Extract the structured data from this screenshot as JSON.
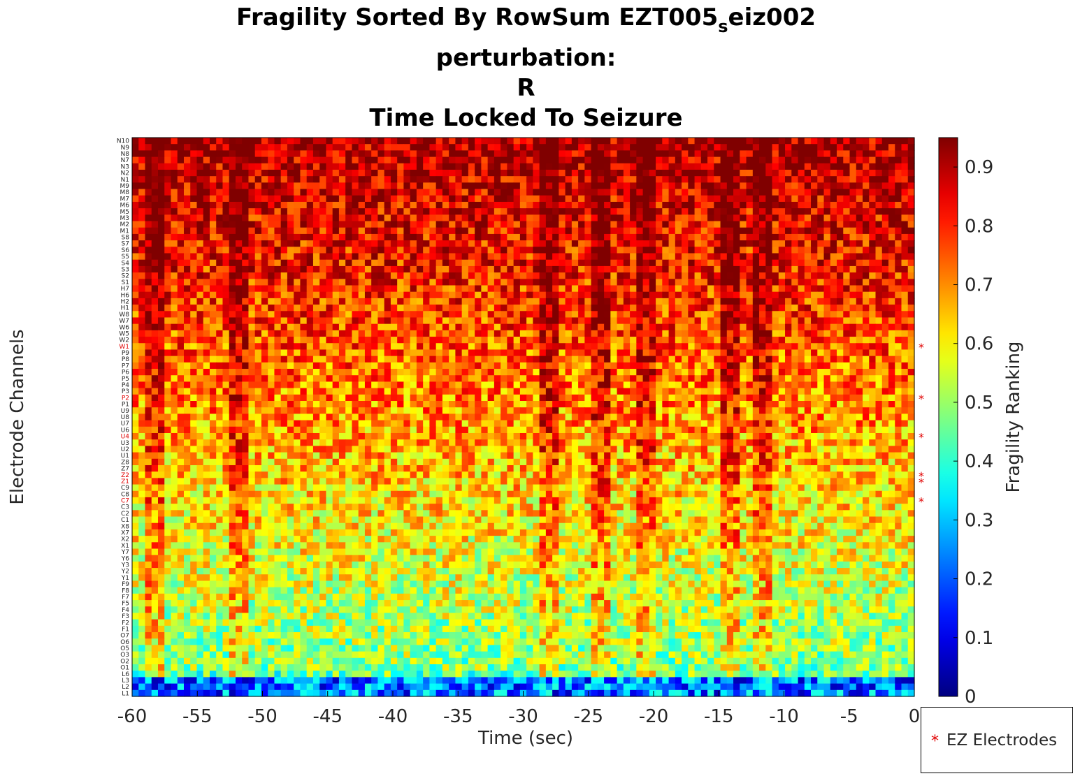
{
  "chart_data": {
    "type": "heatmap",
    "title_main": "Fragility Sorted By RowSum EZT005",
    "title_sub": "s",
    "title_tail": "eiz002",
    "title_lines": [
      "perturbation:",
      "R",
      "Time Locked To Seizure"
    ],
    "xlabel": "Time (sec)",
    "ylabel": "Electrode Channels",
    "colorbar_label": "Fragility Ranking",
    "colormap": "jet",
    "xlim": [
      -60,
      0
    ],
    "clim": [
      0,
      0.95
    ],
    "x_ticks": [
      "-60",
      "-55",
      "-50",
      "-45",
      "-40",
      "-35",
      "-30",
      "-25",
      "-20",
      "-15",
      "-10",
      "-5",
      "0"
    ],
    "colorbar_ticks": [
      "0",
      "0.1",
      "0.2",
      "0.3",
      "0.4",
      "0.5",
      "0.6",
      "0.7",
      "0.8",
      "0.9"
    ],
    "channels": [
      "N10",
      "N9",
      "N8",
      "N7",
      "N3",
      "N2",
      "N1",
      "M9",
      "M8",
      "M7",
      "M6",
      "M5",
      "M3",
      "M2",
      "M1",
      "S8",
      "S7",
      "S6",
      "S5",
      "S4",
      "S3",
      "S2",
      "S1",
      "H7",
      "H6",
      "H2",
      "H1",
      "W8",
      "W7",
      "W6",
      "W5",
      "W2",
      "W1",
      "P9",
      "P8",
      "P7",
      "P6",
      "P5",
      "P4",
      "P3",
      "P2",
      "P1",
      "U9",
      "U8",
      "U7",
      "U6",
      "U4",
      "U3",
      "U2",
      "U1",
      "Z8",
      "Z7",
      "Z2",
      "Z1",
      "C9",
      "C8",
      "C7",
      "C3",
      "C2",
      "C1",
      "X8",
      "X7",
      "X2",
      "X1",
      "Y7",
      "Y6",
      "Y3",
      "Y2",
      "Y1",
      "F9",
      "F8",
      "F7",
      "F5",
      "F4",
      "F3",
      "F2",
      "F1",
      "O7",
      "O6",
      "O5",
      "O3",
      "O2",
      "O1",
      "L6",
      "L3",
      "L2",
      "L1"
    ],
    "ez_electrodes": [
      "W1",
      "P2",
      "U4",
      "Z2",
      "Z1",
      "C7"
    ],
    "n_time_windows": 121,
    "dark_columns_sec": [
      -58.5,
      -52,
      -28.5,
      -24.5,
      -21,
      -14.5,
      -12
    ],
    "legend": {
      "marker": "*",
      "label": "EZ Electrodes",
      "position": "bottom-right outside"
    }
  },
  "colors": {
    "ez_marker": "#e00000",
    "axis": "#000000"
  }
}
